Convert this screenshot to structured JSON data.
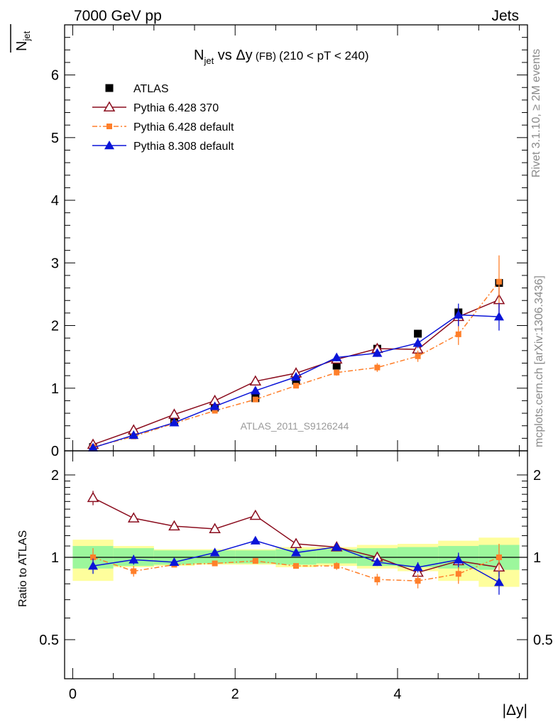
{
  "header": {
    "left": "7000 GeV pp",
    "right": "Jets"
  },
  "plot_title": {
    "main": "N",
    "main_sub": "jet",
    "vs": " vs ",
    "delta_y": "Δy",
    "fb": " (FB) ",
    "range": "(210 < pT < 240)"
  },
  "y_label_main": {
    "text": "N",
    "sub": "jet"
  },
  "y_label_ratio": "Ratio to ATLAS",
  "x_label": "|Δy|",
  "watermark": "ATLAS_2011_S9126244",
  "side_text": {
    "rivet": "Rivet 3.1.10, ≥ 2M events",
    "mcplots": "mcplots.cern.ch [arXiv:1306.3436]"
  },
  "colors": {
    "atlas": "#000000",
    "pythia6_370": "#8b0d1e",
    "pythia6_default": "#ff7f2a",
    "pythia8_default": "#0a14d8",
    "band_inner": "#9cf79c",
    "band_outer": "#fefe9c"
  },
  "chart_data": [
    {
      "type": "line",
      "panel": "main",
      "xlim": [
        -0.1,
        5.6
      ],
      "ylim": [
        0,
        6.8
      ],
      "y_ticks": [
        0,
        1,
        2,
        3,
        4,
        5,
        6
      ],
      "y_tick_labels": [
        "0",
        "1",
        "2",
        "3",
        "4",
        "5",
        "6"
      ],
      "x": [
        0.25,
        0.75,
        1.25,
        1.75,
        2.25,
        2.75,
        3.25,
        3.75,
        4.25,
        4.75,
        5.25
      ],
      "series": [
        {
          "name": "ATLAS",
          "style": "data",
          "marker": "square",
          "values": [
            0.06,
            0.26,
            0.47,
            0.69,
            0.84,
            1.12,
            1.36,
            1.63,
            1.87,
            2.21,
            2.68
          ]
        },
        {
          "name": "Pythia 6.428 370",
          "style": "solid",
          "marker": "triangle-open",
          "values": [
            0.1,
            0.33,
            0.58,
            0.8,
            1.11,
            1.24,
            1.46,
            1.63,
            1.62,
            2.14,
            2.41
          ],
          "err": [
            0.01,
            0.02,
            0.03,
            0.03,
            0.04,
            0.05,
            0.06,
            0.07,
            0.08,
            0.15,
            0.2
          ]
        },
        {
          "name": "Pythia 6.428 default",
          "style": "dashdot",
          "marker": "square",
          "values": [
            0.06,
            0.23,
            0.44,
            0.64,
            0.82,
            1.04,
            1.25,
            1.33,
            1.51,
            1.86,
            2.7
          ],
          "err": [
            0.01,
            0.02,
            0.03,
            0.03,
            0.04,
            0.04,
            0.05,
            0.07,
            0.09,
            0.17,
            0.42
          ]
        },
        {
          "name": "Pythia 8.308 default",
          "style": "solid",
          "marker": "triangle",
          "values": [
            0.05,
            0.25,
            0.45,
            0.71,
            0.96,
            1.18,
            1.49,
            1.56,
            1.72,
            2.17,
            2.14
          ],
          "err": [
            0.01,
            0.02,
            0.03,
            0.03,
            0.04,
            0.05,
            0.06,
            0.06,
            0.08,
            0.18,
            0.22
          ]
        }
      ]
    },
    {
      "type": "line",
      "panel": "ratio",
      "xlim": [
        -0.1,
        5.6
      ],
      "ylim": [
        0.36,
        2.45
      ],
      "log_y": true,
      "y_ticks": [
        0.5,
        1,
        2
      ],
      "y_tick_labels": [
        "0.5",
        "1",
        "2"
      ],
      "x_ticks": [
        0,
        2,
        4
      ],
      "x_tick_labels": [
        "0",
        "2",
        "4"
      ],
      "x": [
        0.25,
        0.75,
        1.25,
        1.75,
        2.25,
        2.75,
        3.25,
        3.75,
        4.25,
        4.75,
        5.25
      ],
      "bins": [
        [
          0,
          0.5
        ],
        [
          0.5,
          1
        ],
        [
          1,
          1.5
        ],
        [
          1.5,
          2
        ],
        [
          2,
          2.5
        ],
        [
          2.5,
          3
        ],
        [
          3,
          3.5
        ],
        [
          3.5,
          4
        ],
        [
          4,
          4.5
        ],
        [
          4.5,
          5
        ],
        [
          5,
          5.5
        ]
      ],
      "band_inner": [
        [
          0.91,
          1.1
        ],
        [
          0.93,
          1.08
        ],
        [
          0.94,
          1.06
        ],
        [
          0.95,
          1.06
        ],
        [
          0.95,
          1.06
        ],
        [
          0.94,
          1.07
        ],
        [
          0.95,
          1.07
        ],
        [
          0.93,
          1.08
        ],
        [
          0.92,
          1.09
        ],
        [
          0.91,
          1.1
        ],
        [
          0.9,
          1.11
        ]
      ],
      "band_outer": [
        [
          0.82,
          1.16
        ],
        [
          0.92,
          1.1
        ],
        [
          0.93,
          1.07
        ],
        [
          0.94,
          1.07
        ],
        [
          0.94,
          1.07
        ],
        [
          0.92,
          1.09
        ],
        [
          0.93,
          1.09
        ],
        [
          0.91,
          1.11
        ],
        [
          0.89,
          1.12
        ],
        [
          0.82,
          1.15
        ],
        [
          0.78,
          1.18
        ]
      ],
      "series": [
        {
          "name": "Pythia 6.428 370",
          "style": "solid",
          "marker": "triangle-open",
          "values": [
            1.65,
            1.39,
            1.3,
            1.27,
            1.42,
            1.12,
            1.09,
            1.0,
            0.88,
            0.97,
            0.92
          ],
          "err": [
            0.1,
            0.04,
            0.03,
            0.02,
            0.03,
            0.02,
            0.02,
            0.03,
            0.04,
            0.06,
            0.07
          ]
        },
        {
          "name": "Pythia 6.428 default",
          "style": "dashdot",
          "marker": "square",
          "values": [
            1.0,
            0.89,
            0.94,
            0.95,
            0.97,
            0.93,
            0.93,
            0.83,
            0.82,
            0.87,
            1.0
          ],
          "err": [
            0.08,
            0.04,
            0.02,
            0.02,
            0.02,
            0.02,
            0.03,
            0.04,
            0.05,
            0.07,
            0.12
          ]
        },
        {
          "name": "Pythia 8.308 default",
          "style": "solid",
          "marker": "triangle",
          "values": [
            0.93,
            0.98,
            0.96,
            1.04,
            1.15,
            1.04,
            1.09,
            0.96,
            0.92,
            0.98,
            0.81
          ],
          "err": [
            0.06,
            0.04,
            0.02,
            0.02,
            0.02,
            0.02,
            0.03,
            0.03,
            0.04,
            0.06,
            0.08
          ]
        }
      ]
    }
  ]
}
